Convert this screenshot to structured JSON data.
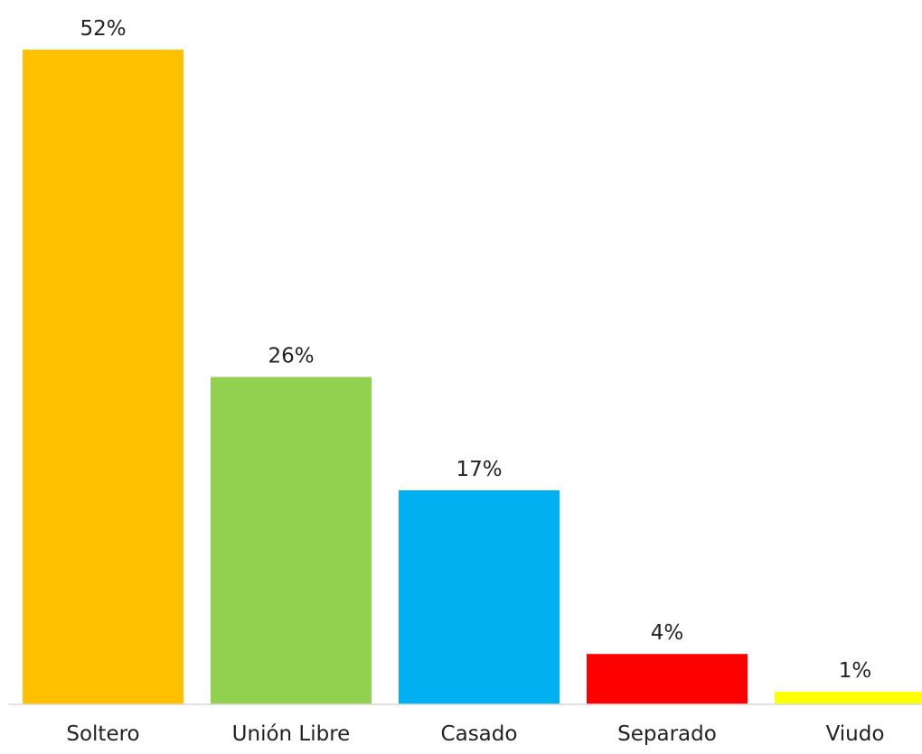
{
  "chart_data": {
    "type": "bar",
    "categories": [
      "Soltero",
      "Unión Libre",
      "Casado",
      "Separado",
      "Viudo"
    ],
    "values": [
      52,
      26,
      17,
      4,
      1
    ],
    "data_labels": [
      "52%",
      "26%",
      "17%",
      "4%",
      "1%"
    ],
    "colors": [
      "#FFC000",
      "#92D050",
      "#00B0F0",
      "#FF0000",
      "#FFFF00"
    ],
    "ylim": [
      0,
      52
    ],
    "grid": false,
    "legend": "none"
  }
}
